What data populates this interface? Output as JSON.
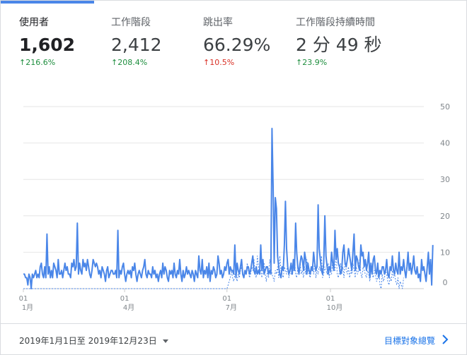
{
  "metrics": [
    {
      "name": "使用者",
      "value": "1,602",
      "arrow": "↑",
      "delta": "216.6%",
      "status_color": "#1e8e3e",
      "active": true
    },
    {
      "name": "工作階段",
      "value": "2,412",
      "arrow": "↑",
      "delta": "208.4%",
      "status_color": "#1e8e3e",
      "active": false
    },
    {
      "name": "跳出率",
      "value": "66.29%",
      "arrow": "↑",
      "delta": "10.5%",
      "status_color": "#d93025",
      "active": false
    },
    {
      "name": "工作階段持續時間",
      "value": "2 分 49 秒",
      "arrow": "↑",
      "delta": "23.9%",
      "status_color": "#1e8e3e",
      "active": false
    }
  ],
  "footer": {
    "date_range": "2019年1月1日至 2019年12月23日",
    "overview_link": "目標對象總覽"
  },
  "colors": {
    "accent": "#4a86e8",
    "link": "#1a73e8"
  },
  "icons": {
    "dropdown": "caret-down-icon",
    "next": "chevron-right-icon"
  },
  "chart_data": {
    "type": "line",
    "y_ticks": [
      0,
      10,
      20,
      30,
      40,
      50
    ],
    "ylim": [
      0,
      50
    ],
    "x_ticks": [
      {
        "day": 1,
        "label_top": "01",
        "label_bottom": "1月"
      },
      {
        "day": 91,
        "label_top": "01",
        "label_bottom": "4月"
      },
      {
        "day": 182,
        "label_top": "01",
        "label_bottom": "7月"
      },
      {
        "day": 274,
        "label_top": "01",
        "label_bottom": "10月"
      }
    ],
    "x_range": [
      1,
      357
    ],
    "grid": true,
    "series": [
      {
        "style": "solid",
        "values": [
          4,
          4,
          3,
          3,
          1,
          4,
          3,
          0,
          4,
          3,
          4,
          5,
          3,
          4,
          3,
          6,
          7,
          4,
          3,
          6,
          3,
          15,
          4,
          6,
          3,
          5,
          3,
          7,
          6,
          5,
          3,
          8,
          4,
          4,
          5,
          3,
          5,
          7,
          5,
          6,
          4,
          4,
          3,
          7,
          6,
          8,
          5,
          6,
          18,
          4,
          7,
          5,
          4,
          8,
          6,
          7,
          5,
          8,
          6,
          4,
          3,
          5,
          8,
          7,
          6,
          7,
          6,
          4,
          5,
          3,
          6,
          5,
          4,
          2,
          5,
          6,
          3,
          4,
          5,
          5,
          4,
          4,
          5,
          3,
          16,
          3,
          5,
          4,
          6,
          7,
          4,
          2,
          4,
          5,
          4,
          5,
          3,
          6,
          5,
          7,
          4,
          2,
          4,
          5,
          4,
          3,
          5,
          6,
          8,
          4,
          3,
          5,
          4,
          4,
          3,
          6,
          4,
          5,
          3,
          4,
          2,
          4,
          5,
          3,
          7,
          4,
          6,
          5,
          3,
          2,
          5,
          4,
          5,
          3,
          7,
          4,
          3,
          5,
          4,
          8,
          4,
          2,
          5,
          3,
          4,
          6,
          4,
          5,
          4,
          3,
          5,
          4,
          2,
          5,
          4,
          3,
          9,
          5,
          4,
          8,
          3,
          5,
          4,
          6,
          3,
          7,
          2,
          5,
          4,
          6,
          5,
          3,
          4,
          9,
          7,
          4,
          5,
          3,
          4,
          6,
          5,
          7,
          8,
          4,
          6,
          5,
          5,
          4,
          12,
          3,
          7,
          5,
          4,
          6,
          8,
          4,
          3,
          5,
          4,
          6,
          6,
          4,
          5,
          7,
          9,
          5,
          4,
          6,
          4,
          5,
          4,
          12,
          5,
          8,
          4,
          5,
          6,
          6,
          4,
          5,
          4,
          44,
          28,
          7,
          25,
          22,
          9,
          6,
          4,
          3,
          6,
          5,
          12,
          24,
          11,
          6,
          4,
          5,
          7,
          4,
          8,
          5,
          18,
          10,
          6,
          4,
          7,
          9,
          8,
          5,
          10,
          8,
          4,
          7,
          5,
          4,
          6,
          5,
          10,
          7,
          5,
          6,
          23,
          11,
          8,
          5,
          4,
          7,
          20,
          9,
          6,
          4,
          6,
          5,
          10,
          7,
          5,
          16,
          8,
          11,
          7,
          6,
          4,
          5,
          10,
          12,
          7,
          6,
          8,
          11,
          9,
          7,
          5,
          10,
          15,
          5,
          9,
          8,
          6,
          5,
          12,
          9,
          10,
          6,
          8,
          5,
          7,
          10,
          3,
          7,
          4,
          8,
          9,
          5,
          4,
          7,
          3,
          5,
          4,
          6,
          6,
          4,
          5,
          8,
          4,
          3,
          6,
          5,
          9,
          5,
          4,
          7,
          5,
          4,
          10,
          4,
          6,
          5,
          8,
          5,
          3,
          6,
          10,
          5,
          7,
          4,
          6,
          9,
          5,
          4,
          6,
          3,
          4,
          2,
          8,
          5,
          6,
          4,
          2,
          6,
          10,
          4,
          8,
          1,
          12
        ]
      },
      {
        "style": "dotted",
        "values": [
          0,
          0,
          0,
          0,
          0,
          0,
          0,
          0,
          0,
          0,
          0,
          0,
          0,
          0,
          0,
          0,
          0,
          0,
          0,
          0,
          0,
          0,
          0,
          0,
          0,
          0,
          0,
          0,
          0,
          0,
          0,
          0,
          0,
          0,
          0,
          0,
          0,
          0,
          0,
          0,
          0,
          0,
          0,
          0,
          0,
          0,
          0,
          0,
          0,
          0,
          0,
          0,
          0,
          0,
          0,
          0,
          0,
          0,
          0,
          0,
          0,
          0,
          0,
          0,
          0,
          0,
          0,
          0,
          0,
          0,
          0,
          0,
          0,
          0,
          0,
          0,
          0,
          0,
          0,
          0,
          0,
          0,
          0,
          0,
          0,
          0,
          0,
          0,
          0,
          0,
          0,
          0,
          0,
          0,
          0,
          0,
          0,
          0,
          0,
          0,
          0,
          0,
          0,
          0,
          0,
          0,
          0,
          0,
          0,
          0,
          0,
          0,
          0,
          0,
          0,
          0,
          0,
          0,
          0,
          0,
          0,
          0,
          0,
          0,
          0,
          0,
          0,
          0,
          0,
          0,
          0,
          0,
          0,
          0,
          0,
          0,
          0,
          0,
          0,
          0,
          0,
          0,
          0,
          0,
          0,
          0,
          0,
          0,
          0,
          0,
          0,
          0,
          0,
          0,
          0,
          0,
          0,
          0,
          0,
          0,
          0,
          0,
          0,
          0,
          0,
          0,
          0,
          0,
          0,
          0,
          0,
          0,
          0,
          0,
          0,
          0,
          0,
          0,
          0,
          0,
          0,
          0,
          1,
          2,
          3,
          5,
          3,
          2,
          4,
          3,
          2,
          4,
          3,
          5,
          6,
          4,
          3,
          5,
          4,
          7,
          5,
          3,
          4,
          6,
          5,
          8,
          4,
          3,
          9,
          6,
          4,
          5,
          3,
          6,
          7,
          4,
          2,
          5,
          3,
          8,
          6,
          4,
          3,
          2,
          5,
          4,
          6,
          3,
          9,
          5,
          4,
          3,
          6,
          5,
          4,
          7,
          3,
          5,
          4,
          6,
          5,
          8,
          4,
          3,
          6,
          5,
          7,
          4,
          5,
          3,
          6,
          4,
          8,
          5,
          4,
          3,
          5,
          6,
          4,
          7,
          3,
          5,
          4,
          6,
          5,
          9,
          3,
          4,
          6,
          5,
          4,
          7,
          3,
          5,
          4,
          8,
          6,
          5,
          10,
          4,
          3,
          5,
          7,
          4,
          6,
          3,
          8,
          5,
          4,
          6,
          3,
          5,
          4,
          7,
          5,
          3,
          6,
          4,
          5,
          8,
          4,
          3,
          6,
          5,
          4,
          3,
          5,
          4,
          2,
          6,
          4,
          3,
          5,
          4,
          2,
          3,
          5,
          1,
          0,
          4,
          2,
          3,
          5,
          4,
          2,
          1,
          3,
          2,
          5,
          3,
          4,
          2,
          1,
          3,
          0,
          2,
          1,
          0,
          3
        ]
      }
    ]
  }
}
